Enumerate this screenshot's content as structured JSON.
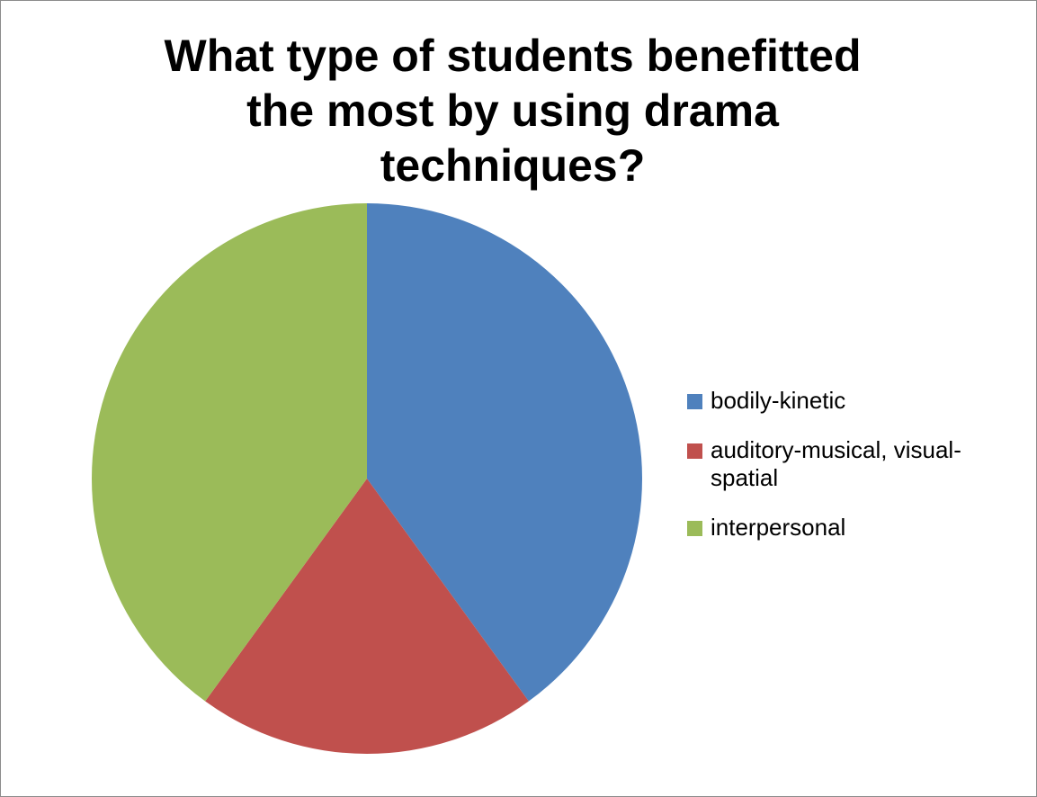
{
  "chart_data": {
    "type": "pie",
    "title": "What type of students benefitted the most by using drama techniques?",
    "title_lines": [
      "What type of students benefitted",
      "the most by using drama",
      "techniques?"
    ],
    "categories": [
      "bodily-kinetic",
      "auditory-musical, visual-spatial",
      "interpersonal"
    ],
    "values": [
      40,
      20,
      40
    ],
    "colors": [
      "#4f81bd",
      "#c0504d",
      "#9bbb59"
    ],
    "legend_position": "right",
    "legend": [
      {
        "label_lines": [
          "bodily-kinetic"
        ],
        "color": "#4f81bd"
      },
      {
        "label_lines": [
          "auditory-musical, visual-",
          "spatial"
        ],
        "color": "#c0504d"
      },
      {
        "label_lines": [
          "interpersonal"
        ],
        "color": "#9bbb59"
      }
    ]
  }
}
